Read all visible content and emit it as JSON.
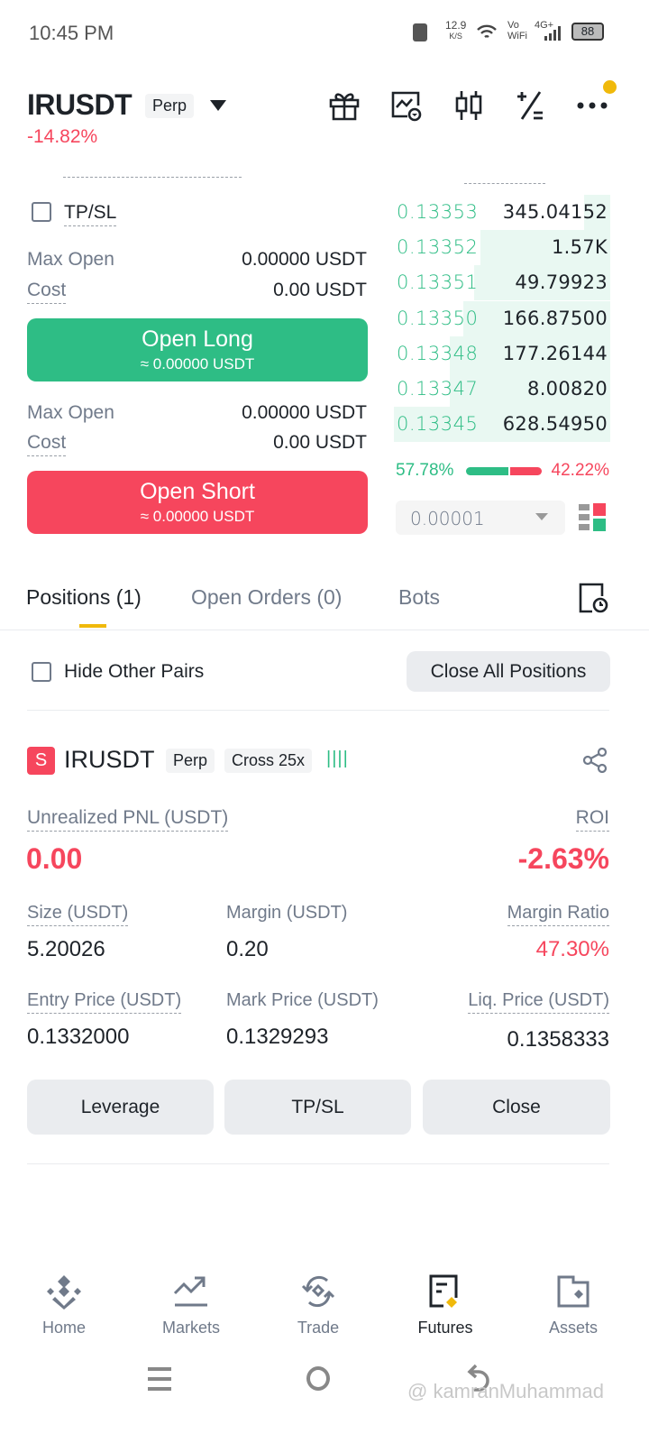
{
  "status_bar": {
    "time": "10:45 PM",
    "speed": "12.9",
    "speed_unit": "K/S",
    "vowifi_top": "Vo",
    "vowifi_bottom": "WiFi",
    "network": "4G+",
    "battery": "88"
  },
  "header": {
    "symbol": "IRUSDT",
    "type": "Perp",
    "change": "-14.82%"
  },
  "order_form": {
    "tpsl_label": "TP/SL",
    "long": {
      "max_open_label": "Max Open",
      "max_open_value": "0.00000 USDT",
      "cost_label": "Cost",
      "cost_value": "0.00 USDT",
      "button": "Open Long",
      "button_sub": "≈ 0.00000 USDT"
    },
    "short": {
      "max_open_label": "Max Open",
      "max_open_value": "0.00000 USDT",
      "cost_label": "Cost",
      "cost_value": "0.00 USDT",
      "button": "Open Short",
      "button_sub": "≈ 0.00000 USDT"
    }
  },
  "order_book": {
    "rows": [
      {
        "price": "0.13353",
        "qty": "345.04152",
        "depth": 0.12
      },
      {
        "price": "0.13352",
        "qty": "1.57K",
        "depth": 0.6
      },
      {
        "price": "0.13351",
        "qty": "49.79923",
        "depth": 0.63
      },
      {
        "price": "0.13350",
        "qty": "166.87500",
        "depth": 0.68
      },
      {
        "price": "0.13348",
        "qty": "177.26144",
        "depth": 0.74
      },
      {
        "price": "0.13347",
        "qty": "8.00820",
        "depth": 0.74
      },
      {
        "price": "0.13345",
        "qty": "628.54950",
        "depth": 1.0
      }
    ],
    "buy_ratio": "57.78%",
    "sell_ratio": "42.22%",
    "buy_fraction": 0.5778,
    "precision": "0.00001"
  },
  "tabs": [
    {
      "label": "Positions (1)",
      "active": true
    },
    {
      "label": "Open Orders (0)"
    },
    {
      "label": "Bots"
    }
  ],
  "filters": {
    "hide_other_pairs": "Hide Other Pairs",
    "close_all": "Close All Positions"
  },
  "position": {
    "side_badge": "S",
    "symbol": "IRUSDT",
    "type": "Perp",
    "margin_mode": "Cross 25x",
    "pnl_label": "Unrealized PNL (USDT)",
    "pnl": "0.00",
    "roi_label": "ROI",
    "roi": "-2.63%",
    "size_label": "Size (USDT)",
    "size": "5.20026",
    "margin_label": "Margin (USDT)",
    "margin": "0.20",
    "margin_ratio_label": "Margin Ratio",
    "margin_ratio": "47.30%",
    "entry_label": "Entry Price (USDT)",
    "entry": "0.1332000",
    "mark_label": "Mark Price (USDT)",
    "mark": "0.1329293",
    "liq_label": "Liq. Price (USDT)",
    "liq": "0.1358333",
    "buttons": [
      "Leverage",
      "TP/SL",
      "Close"
    ]
  },
  "bottom_nav": [
    {
      "label": "Home"
    },
    {
      "label": "Markets"
    },
    {
      "label": "Trade"
    },
    {
      "label": "Futures",
      "active": true
    },
    {
      "label": "Assets"
    }
  ],
  "watermark": "@ kamranMuhammad",
  "colors": {
    "green": "#2ebd85",
    "red": "#f6465d",
    "accent": "#f0b90b"
  }
}
